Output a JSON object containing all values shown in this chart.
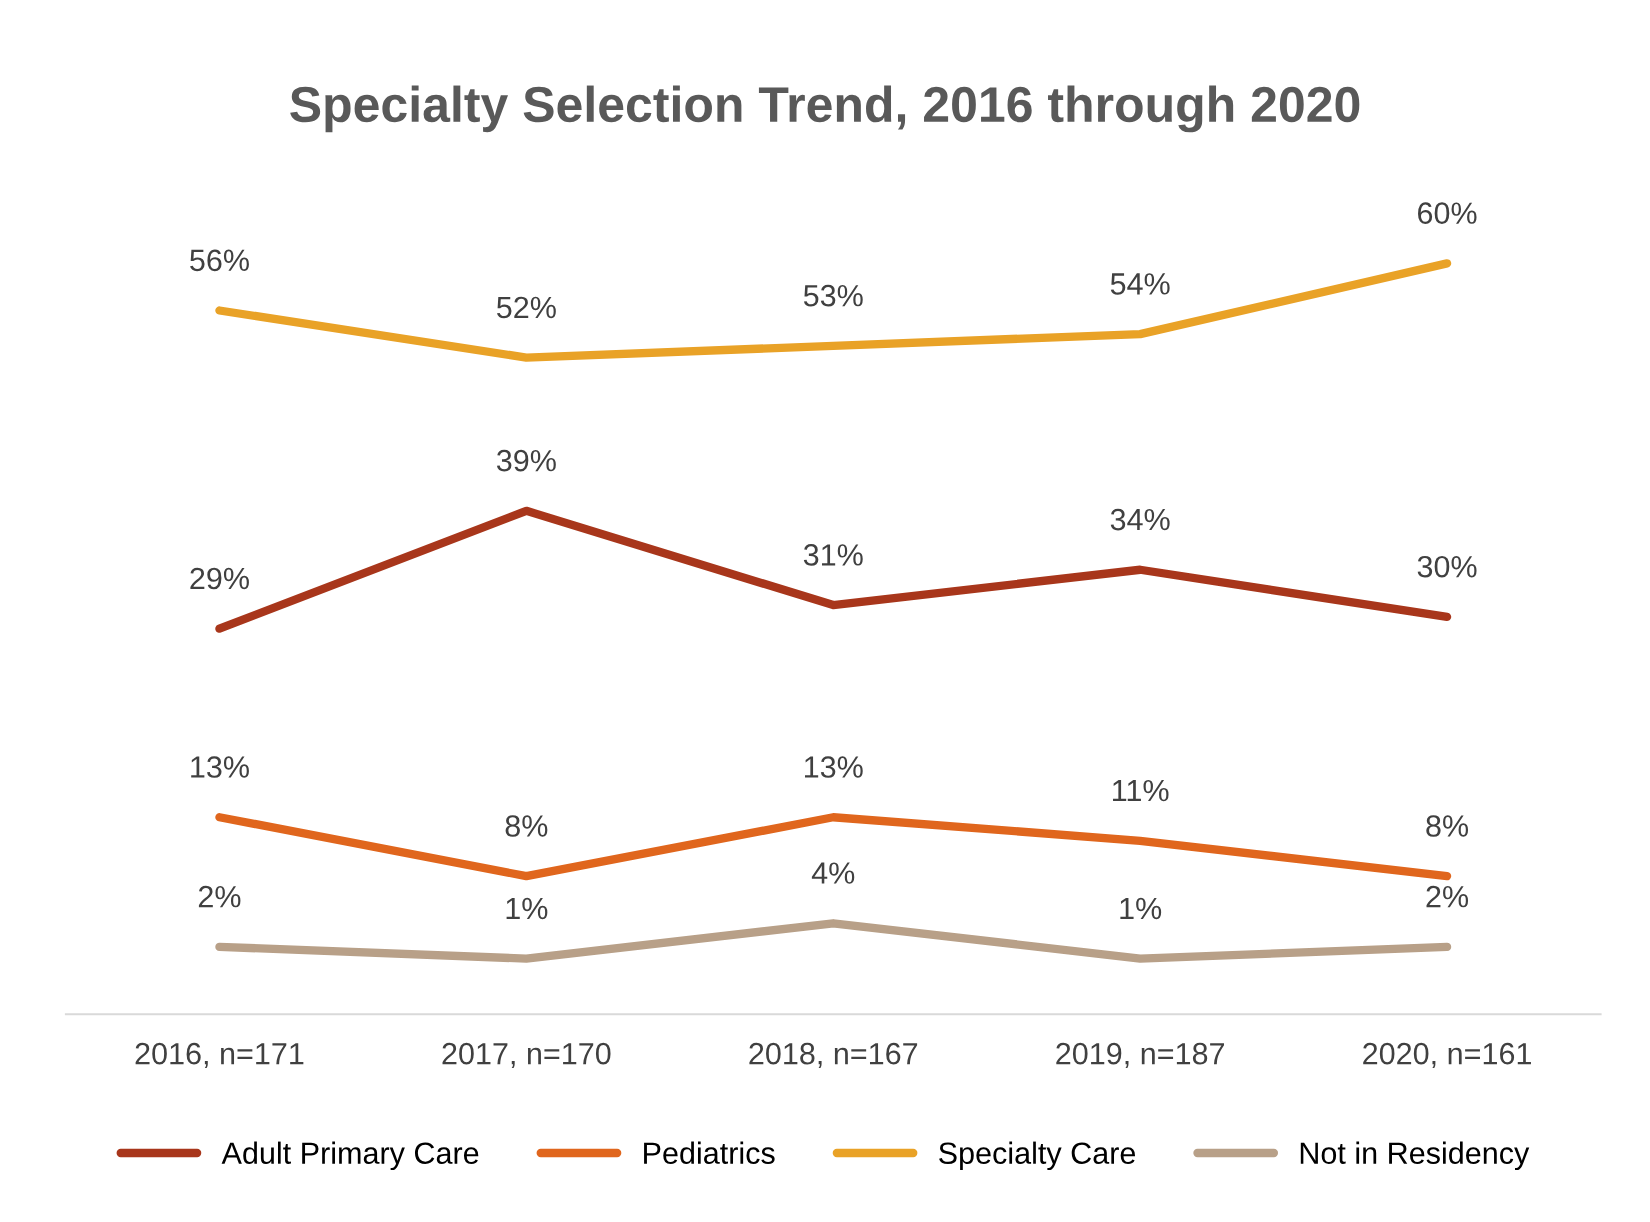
{
  "chart_data": {
    "type": "line",
    "title": "Specialty Selection Trend, 2016 through 2020",
    "categories": [
      "2016, n=171",
      "2017, n=170",
      "2018, n=167",
      "2019, n=187",
      "2020, n=161"
    ],
    "series": [
      {
        "name": "Adult Primary Care",
        "color": "#a8361b",
        "values": [
          29,
          39,
          31,
          34,
          30
        ],
        "value_labels": [
          "29%",
          "39%",
          "31%",
          "34%",
          "30%"
        ]
      },
      {
        "name": "Pediatrics",
        "color": "#e0661d",
        "values": [
          13,
          8,
          13,
          11,
          8
        ],
        "value_labels": [
          "13%",
          "8%",
          "13%",
          "11%",
          "8%"
        ]
      },
      {
        "name": "Specialty Care",
        "color": "#e9a227",
        "values": [
          56,
          52,
          53,
          54,
          60
        ],
        "value_labels": [
          "56%",
          "52%",
          "53%",
          "54%",
          "60%"
        ]
      },
      {
        "name": "Not in Residency",
        "color": "#b8a088",
        "values": [
          2,
          1,
          4,
          1,
          2
        ],
        "value_labels": [
          "2%",
          "1%",
          "4%",
          "1%",
          "2%"
        ]
      }
    ],
    "legend": "bottom",
    "tick_labels": "x",
    "marker": "none",
    "line_style": "solid"
  }
}
